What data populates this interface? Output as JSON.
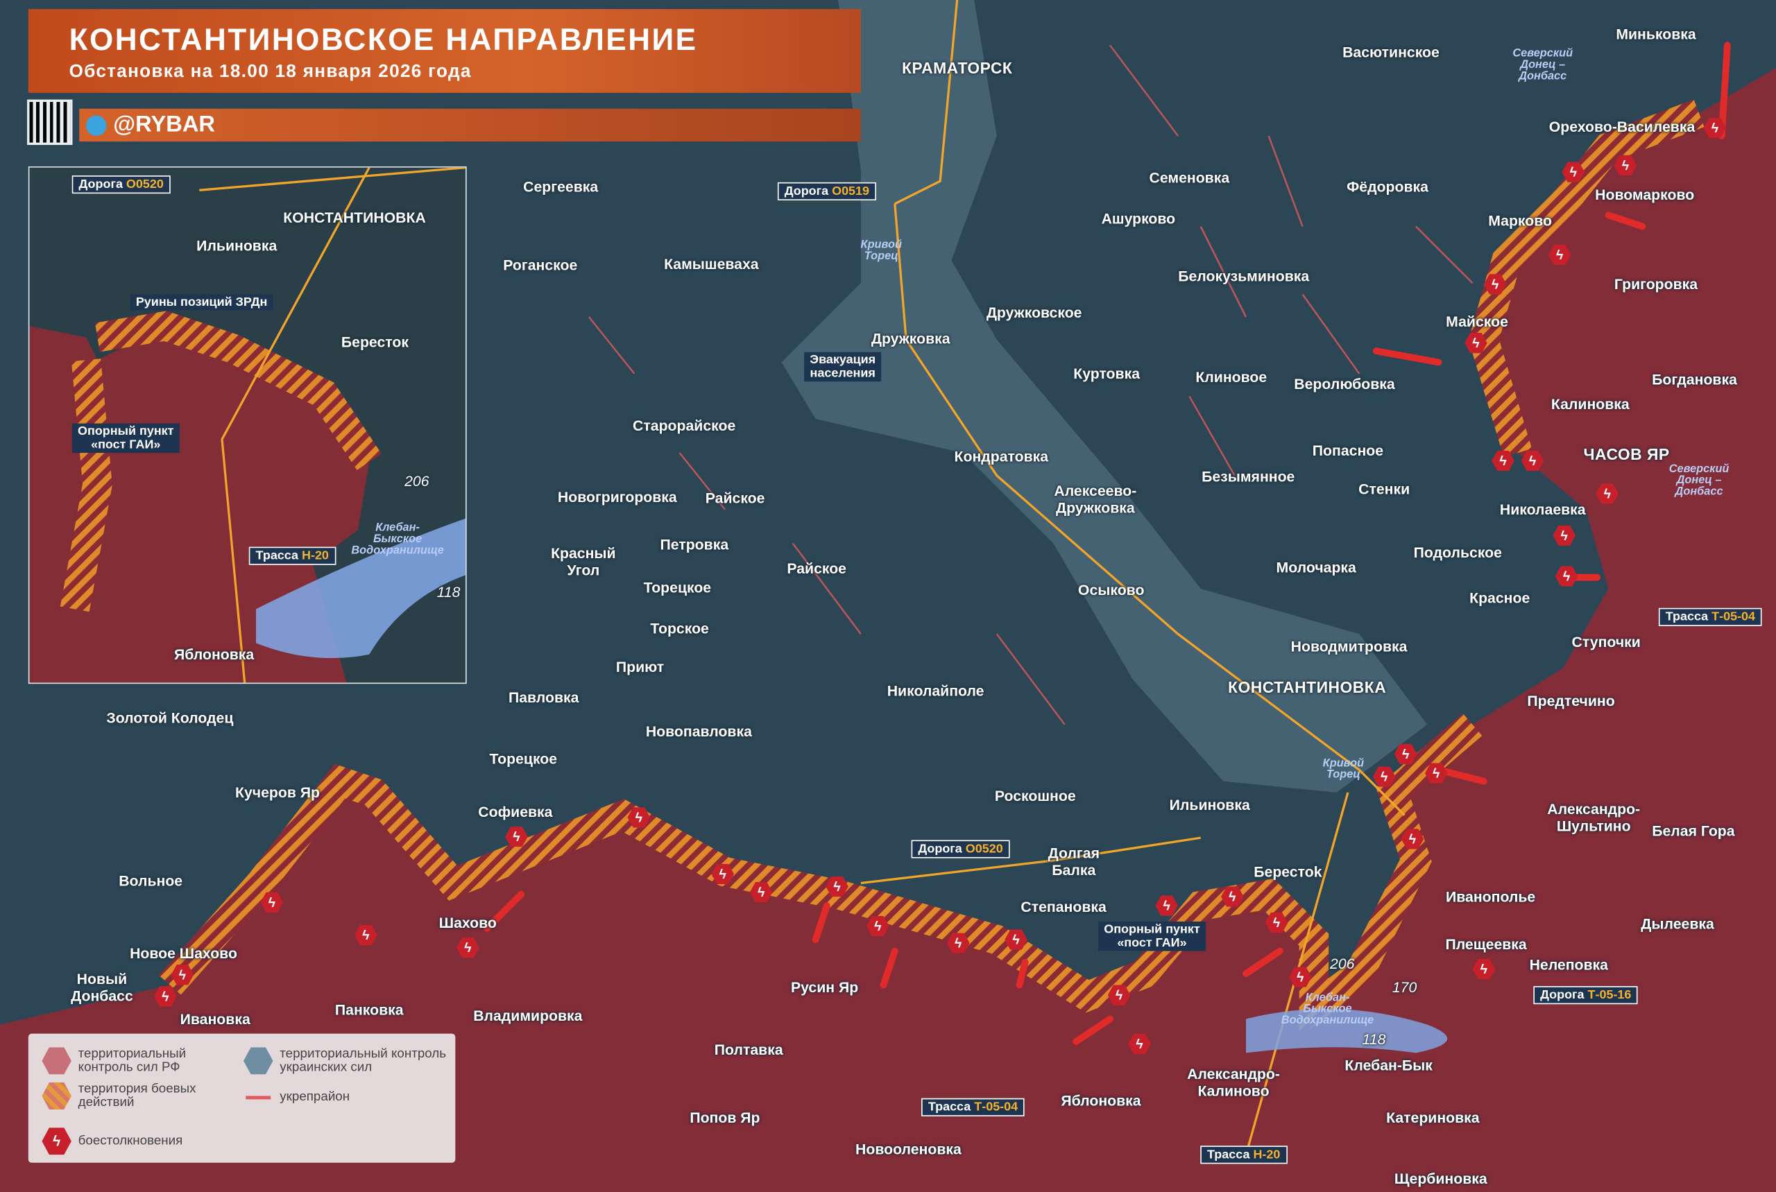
{
  "header": {
    "title": "КОНСТАНТИНОВСКОЕ НАПРАВЛЕНИЕ",
    "subtitle": "Обстановка на 18.00 18 января 2026 года",
    "brand": "@RYBAR"
  },
  "colors": {
    "russian_control": "#8b2b36",
    "ukrainian_control": "#2c4656",
    "combat_zone": "#e08a2a",
    "fortification": "#e35a5a",
    "clash": "#c8202a",
    "header": "#c8521f"
  },
  "legend": {
    "ru_control": "территориальный контроль сил РФ",
    "ua_control": "территориальный контроль украинских сил",
    "combat": "территория боевых действий",
    "fortification": "укрепрайон",
    "clash": "боестолкновения"
  },
  "places": [
    {
      "name": "КРАМАТОРСК",
      "kind": "city"
    },
    {
      "name": "Васютинское",
      "kind": "village"
    },
    {
      "name": "Миньковка",
      "kind": "village"
    },
    {
      "name": "Северский Донец – Донбасс",
      "kind": "river"
    },
    {
      "name": "Орехово-Василевка",
      "kind": "village"
    },
    {
      "name": "Сергеевка",
      "kind": "village"
    },
    {
      "name": "Дорога|О0519",
      "kind": "road"
    },
    {
      "name": "Семеновка",
      "kind": "village"
    },
    {
      "name": "Фёдоровка",
      "kind": "village"
    },
    {
      "name": "Новомарково",
      "kind": "village"
    },
    {
      "name": "Ашурково",
      "kind": "village"
    },
    {
      "name": "Марково",
      "kind": "village"
    },
    {
      "name": "Кривой Торец",
      "kind": "river"
    },
    {
      "name": "Роганское",
      "kind": "village"
    },
    {
      "name": "Камышеваха",
      "kind": "village"
    },
    {
      "name": "Белокузьминовка",
      "kind": "village"
    },
    {
      "name": "Григоровка",
      "kind": "village"
    },
    {
      "name": "Дружковское",
      "kind": "village"
    },
    {
      "name": "Майское",
      "kind": "village"
    },
    {
      "name": "Дружковка",
      "kind": "village"
    },
    {
      "name": "Эвакуация\nнаселения",
      "kind": "note"
    },
    {
      "name": "Куртовка",
      "kind": "village"
    },
    {
      "name": "Клиновое",
      "kind": "village"
    },
    {
      "name": "Веролюбовка",
      "kind": "village"
    },
    {
      "name": "Богдановка",
      "kind": "village"
    },
    {
      "name": "Калиновка",
      "kind": "village"
    },
    {
      "name": "Старорайское",
      "kind": "village"
    },
    {
      "name": "Попасное",
      "kind": "village"
    },
    {
      "name": "ЧАСОВ ЯР",
      "kind": "city"
    },
    {
      "name": "Кондратовка",
      "kind": "village"
    },
    {
      "name": "Безымянное",
      "kind": "village"
    },
    {
      "name": "Северский Донец – Донбасс",
      "kind": "river"
    },
    {
      "name": "Алексеево-\nДружковка",
      "kind": "village"
    },
    {
      "name": "Стенки",
      "kind": "village"
    },
    {
      "name": "Новогригоровка",
      "kind": "village"
    },
    {
      "name": "Райское",
      "kind": "village"
    },
    {
      "name": "Николаевка",
      "kind": "village"
    },
    {
      "name": "Петровка",
      "kind": "village"
    },
    {
      "name": "Красный\nУгол",
      "kind": "village"
    },
    {
      "name": "Подольское",
      "kind": "village"
    },
    {
      "name": "Молочарка",
      "kind": "village"
    },
    {
      "name": "Райское",
      "kind": "village"
    },
    {
      "name": "Торецкое",
      "kind": "village"
    },
    {
      "name": "Осыково",
      "kind": "village"
    },
    {
      "name": "Красное",
      "kind": "village"
    },
    {
      "name": "Трасса|Т-05-04",
      "kind": "road"
    },
    {
      "name": "Торское",
      "kind": "village"
    },
    {
      "name": "Новодмитровка",
      "kind": "village"
    },
    {
      "name": "Ступочки",
      "kind": "village"
    },
    {
      "name": "Приют",
      "kind": "village"
    },
    {
      "name": "Николайполе",
      "kind": "village"
    },
    {
      "name": "КОНСТАНТИНОВКА",
      "kind": "city"
    },
    {
      "name": "Павловка",
      "kind": "village"
    },
    {
      "name": "Предтечино",
      "kind": "village"
    },
    {
      "name": "Новопавловка",
      "kind": "village"
    },
    {
      "name": "Золотой Колодец",
      "kind": "village"
    },
    {
      "name": "Торецкое",
      "kind": "village"
    },
    {
      "name": "Кривой Торец",
      "kind": "river"
    },
    {
      "name": "Кучеров Яр",
      "kind": "village"
    },
    {
      "name": "Роскошное",
      "kind": "village"
    },
    {
      "name": "Ильиновка",
      "kind": "village"
    },
    {
      "name": "Софиевка",
      "kind": "village"
    },
    {
      "name": "Александро-\nШультино",
      "kind": "village"
    },
    {
      "name": "Белая Гора",
      "kind": "village"
    },
    {
      "name": "Дорога|О0520",
      "kind": "road"
    },
    {
      "name": "Долгая\nБалка",
      "kind": "village"
    },
    {
      "name": "Берестоk",
      "kind": "village"
    },
    {
      "name": "Вольное",
      "kind": "village"
    },
    {
      "name": "Иванополье",
      "kind": "village"
    },
    {
      "name": "Шахово",
      "kind": "village"
    },
    {
      "name": "Степановка",
      "kind": "village"
    },
    {
      "name": "Опорный пункт\n«пост ГАИ»",
      "kind": "note"
    },
    {
      "name": "Дылеевка",
      "kind": "village"
    },
    {
      "name": "Новое Шахово",
      "kind": "village"
    },
    {
      "name": "Плещеевка",
      "kind": "village"
    },
    {
      "name": "206",
      "kind": "height"
    },
    {
      "name": "Нелеповка",
      "kind": "village"
    },
    {
      "name": "Новый\nДонбасс",
      "kind": "village"
    },
    {
      "name": "Русин Яр",
      "kind": "village"
    },
    {
      "name": "170",
      "kind": "height"
    },
    {
      "name": "Дорога|Т-05-16",
      "kind": "road"
    },
    {
      "name": "Ивановка",
      "kind": "village"
    },
    {
      "name": "Панковка",
      "kind": "village"
    },
    {
      "name": "Владимировка",
      "kind": "village"
    },
    {
      "name": "Клебан-Быкское Водохранилище",
      "kind": "river"
    },
    {
      "name": "118",
      "kind": "height"
    },
    {
      "name": "Полтавка",
      "kind": "village"
    },
    {
      "name": "Александро-\nКалиново",
      "kind": "village"
    },
    {
      "name": "Клебан-Бык",
      "kind": "village"
    },
    {
      "name": "Яблоновка",
      "kind": "village"
    },
    {
      "name": "Трасса|Т-05-04",
      "kind": "road"
    },
    {
      "name": "Попов Яр",
      "kind": "village"
    },
    {
      "name": "Катериновка",
      "kind": "village"
    },
    {
      "name": "Новооленовка",
      "kind": "village"
    },
    {
      "name": "Трасса|Н-20",
      "kind": "road"
    },
    {
      "name": "Щербиновка",
      "kind": "village"
    }
  ],
  "inset_places": [
    {
      "name": "Дорога|О0520",
      "kind": "road"
    },
    {
      "name": "КОНСТАНТИНОВКА",
      "kind": "village"
    },
    {
      "name": "Ильиновка",
      "kind": "village"
    },
    {
      "name": "Руины позиций ЗРДн",
      "kind": "note"
    },
    {
      "name": "Бересток",
      "kind": "village"
    },
    {
      "name": "Опорный пункт\n«пост ГАИ»",
      "kind": "note"
    },
    {
      "name": "206",
      "kind": "height"
    },
    {
      "name": "Клебан-Быкское Водохранилище",
      "kind": "river"
    },
    {
      "name": "Трасса|Н-20",
      "kind": "road"
    },
    {
      "name": "118",
      "kind": "height"
    },
    {
      "name": "Яблоновка",
      "kind": "village"
    }
  ]
}
